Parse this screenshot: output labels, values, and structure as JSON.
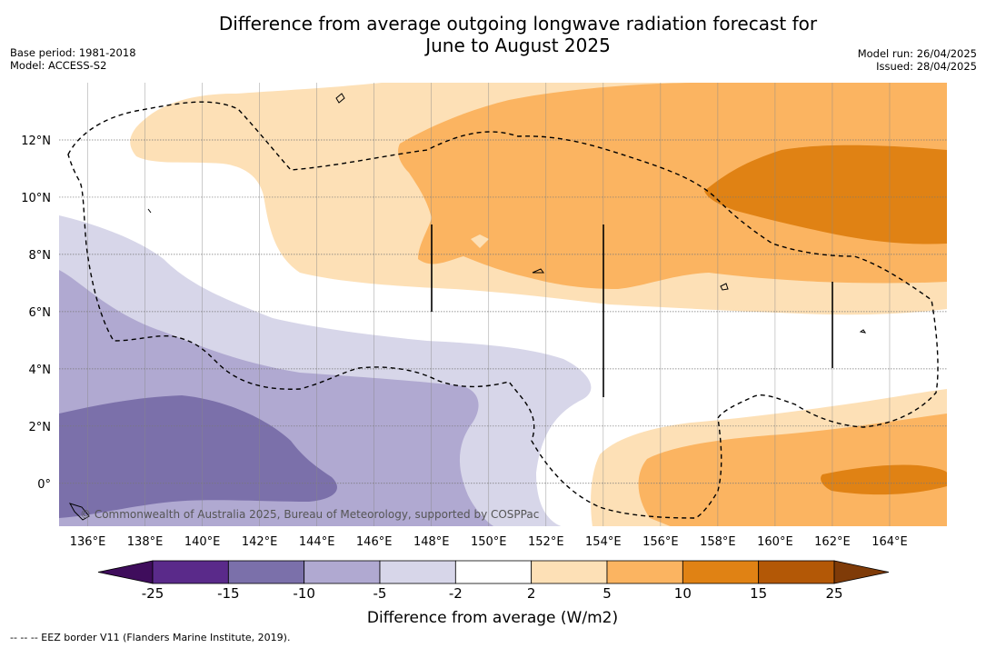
{
  "title_line1": "Difference from average outgoing longwave radiation forecast for",
  "title_line2": "June to August 2025",
  "meta": {
    "base_period": "Base period: 1981-2018",
    "model": "Model: ACCESS-S2",
    "model_run": "Model run: 26/04/2025",
    "issued": "Issued: 28/04/2025"
  },
  "map": {
    "lon_labels": [
      "136°E",
      "138°E",
      "140°E",
      "142°E",
      "144°E",
      "146°E",
      "148°E",
      "150°E",
      "152°E",
      "154°E",
      "156°E",
      "158°E",
      "160°E",
      "162°E",
      "164°E"
    ],
    "lat_labels": [
      "12°N",
      "10°N",
      "8°N",
      "6°N",
      "4°N",
      "2°N",
      "0°"
    ],
    "lon_values": [
      136,
      138,
      140,
      142,
      144,
      146,
      148,
      150,
      152,
      154,
      156,
      158,
      160,
      162,
      164
    ],
    "lat_values": [
      12,
      10,
      8,
      6,
      4,
      2,
      0
    ],
    "extent": {
      "lon": [
        135,
        166
      ],
      "lat": [
        -1.5,
        14
      ]
    },
    "copyright": "© Commonwealth of Australia 2025, Bureau of Meteorology, supported by COSPPac",
    "region_boundary": "EEZ border"
  },
  "colorbar": {
    "title": "Difference from average (W/m2)",
    "labels": [
      "-25",
      "-15",
      "-10",
      "-5",
      "-2",
      "2",
      "5",
      "10",
      "15",
      "25"
    ],
    "colors": [
      "#3f0d5c",
      "#5a2a8a",
      "#7b70aa",
      "#b0a9d1",
      "#d7d6e9",
      "#ffffff",
      "#fde0b6",
      "#fbb461",
      "#e08214",
      "#b35806",
      "#7f3b08"
    ]
  },
  "footnote": "--  --  -- EEZ border V11 (Flanders Marine Institute, 2019)."
}
